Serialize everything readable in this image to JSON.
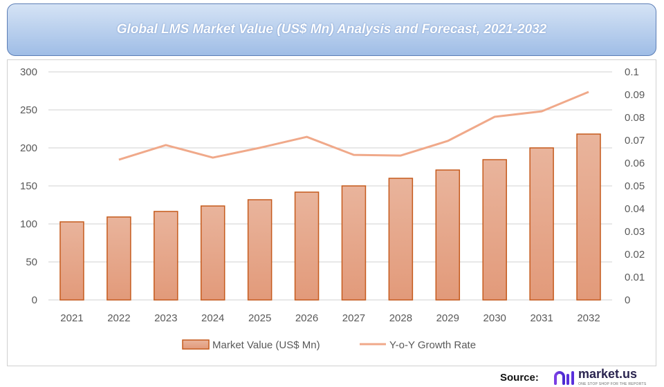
{
  "chart_data": {
    "type": "bar+line",
    "title": "Global LMS Market Value (US$ Mn) Analysis and Forecast, 2021-2032",
    "categories": [
      "2021",
      "2022",
      "2023",
      "2024",
      "2025",
      "2026",
      "2027",
      "2028",
      "2029",
      "2030",
      "2031",
      "2032"
    ],
    "series": [
      {
        "name": "Market Value (US$ Mn)",
        "type": "bar",
        "axis": "left",
        "values": [
          102.7,
          109.1,
          116.4,
          123.6,
          131.8,
          141.8,
          150.0,
          160.0,
          170.9,
          184.5,
          200.0,
          218.2
        ]
      },
      {
        "name": "Y-o-Y Growth Rate",
        "type": "line",
        "axis": "right",
        "values": [
          null,
          0.0615,
          0.0679,
          0.0624,
          0.0667,
          0.0715,
          0.0636,
          0.0633,
          0.0697,
          0.0803,
          0.0827,
          0.0912
        ]
      }
    ],
    "y_left": {
      "range": [
        0,
        300
      ],
      "ticks": [
        "0",
        "50",
        "100",
        "150",
        "200",
        "250",
        "300"
      ]
    },
    "y_right": {
      "range": [
        0,
        0.1
      ],
      "ticks": [
        "0",
        "0.01",
        "0.02",
        "0.03",
        "0.04",
        "0.05",
        "0.06",
        "0.07",
        "0.08",
        "0.09",
        "0.1"
      ]
    },
    "grid": true,
    "legend": "bottom",
    "colors": {
      "bar_fill_top": "#e9b49c",
      "bar_fill_bottom": "#e29a7a",
      "bar_border": "#c55a1c",
      "line": "#f0a98a",
      "grid": "#d9d9d9"
    }
  },
  "source_label": "Source:",
  "logo": {
    "name": "market.us",
    "tagline": "ONE STOP SHOP FOR THE REPORTS"
  }
}
